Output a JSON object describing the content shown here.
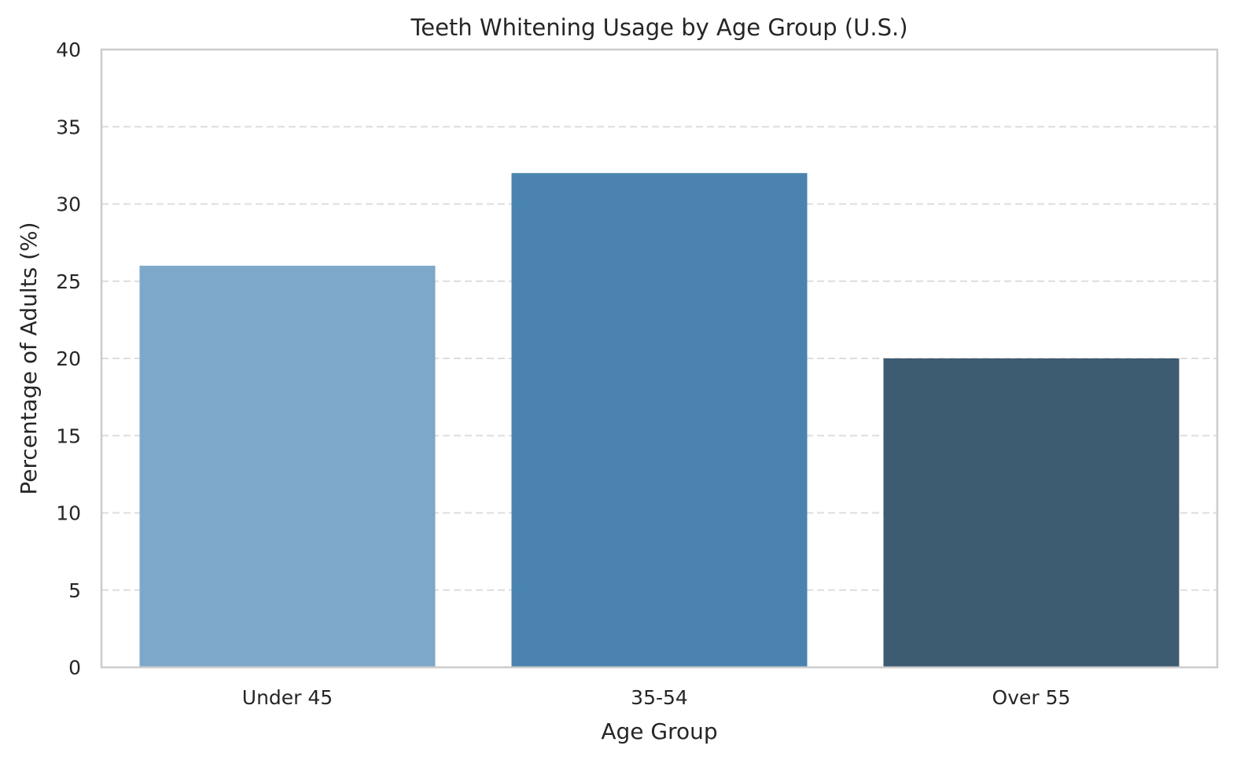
{
  "chart_data": {
    "type": "bar",
    "title": "Teeth Whitening Usage by Age Group (U.S.)",
    "xlabel": "Age Group",
    "ylabel": "Percentage of Adults (%)",
    "categories": [
      "Under 45",
      "35-54",
      "Over 55"
    ],
    "values": [
      26,
      32,
      20
    ],
    "colors": [
      "#7ea8c9",
      "#4a83b0",
      "#3d5b71"
    ],
    "ylim": [
      0,
      40
    ],
    "yticks": [
      0,
      5,
      10,
      15,
      20,
      25,
      30,
      35,
      40
    ],
    "grid": "y-dashed",
    "legend": "none"
  }
}
